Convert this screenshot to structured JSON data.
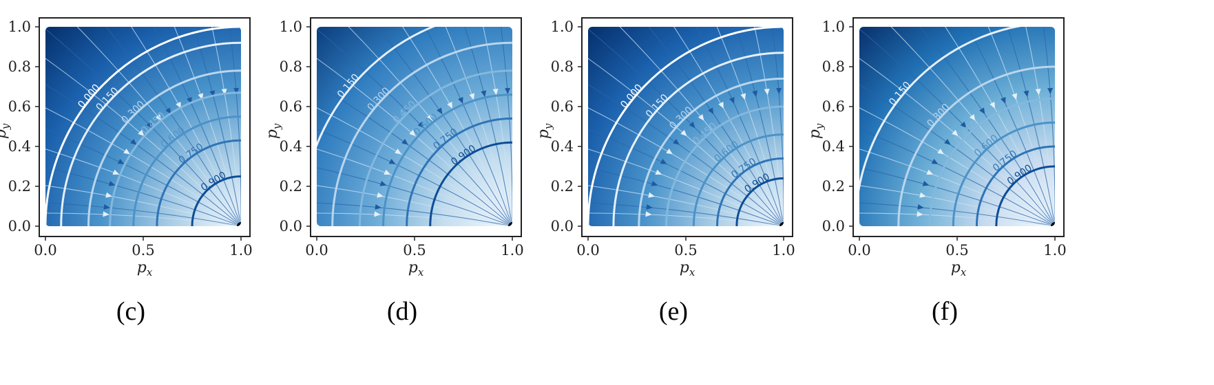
{
  "chart_data": [
    {
      "type": "contour",
      "panel_label": "(c)",
      "xlabel": "p",
      "xlabel_sub": "x",
      "ylabel": "p",
      "ylabel_sub": "y",
      "xlim": [
        0,
        1
      ],
      "ylim": [
        0,
        1
      ],
      "xticks": [
        "0.0",
        "0.5",
        "1.0"
      ],
      "yticks": [
        "0.0",
        "0.2",
        "0.4",
        "0.6",
        "0.8",
        "1.0"
      ],
      "target_point": [
        1.0,
        0.0
      ],
      "contour_levels": [
        "0.000",
        "0.150",
        "0.300",
        "0.450",
        "0.600",
        "0.750",
        "0.900"
      ],
      "contour_radii": [
        1.0,
        0.92,
        0.78,
        0.67,
        0.55,
        0.43,
        0.25
      ],
      "stream_angles": [
        95,
        100,
        105,
        110,
        115,
        120,
        125,
        130,
        135,
        140,
        145,
        150,
        155,
        160,
        165,
        170,
        175,
        178
      ],
      "color_stops": [
        "#052f6b",
        "#1b61ad",
        "#4a94cb",
        "#a9cde6",
        "#f7fbff"
      ]
    },
    {
      "type": "contour",
      "panel_label": "(d)",
      "xlabel": "p",
      "xlabel_sub": "x",
      "ylabel": "p",
      "ylabel_sub": "y",
      "xlim": [
        0,
        1
      ],
      "ylim": [
        0,
        1
      ],
      "xticks": [
        "0.0",
        "0.5",
        "1.0"
      ],
      "yticks": [
        "0.0",
        "0.2",
        "0.4",
        "0.6",
        "0.8",
        "1.0"
      ],
      "target_point": [
        1.0,
        0.0
      ],
      "contour_levels": [
        "0.150",
        "0.300",
        "0.450",
        "0.600",
        "0.750",
        "0.900"
      ],
      "contour_radii": [
        1.08,
        0.92,
        0.78,
        0.66,
        0.54,
        0.42
      ],
      "stream_angles": [
        95,
        100,
        105,
        110,
        115,
        120,
        125,
        130,
        135,
        140,
        145,
        150,
        155,
        160,
        165,
        170,
        175,
        178
      ],
      "color_stops": [
        "#0b3d7c",
        "#2f7cbf",
        "#6aaad7",
        "#c3ddef",
        "#f7fbff"
      ]
    },
    {
      "type": "contour",
      "panel_label": "(e)",
      "xlabel": "p",
      "xlabel_sub": "x",
      "ylabel": "p",
      "ylabel_sub": "y",
      "xlim": [
        0,
        1
      ],
      "ylim": [
        0,
        1
      ],
      "xticks": [
        "0.0",
        "0.5",
        "1.0"
      ],
      "yticks": [
        "0.0",
        "0.2",
        "0.4",
        "0.6",
        "0.8",
        "1.0"
      ],
      "target_point": [
        1.0,
        0.0
      ],
      "contour_levels": [
        "0.000",
        "0.150",
        "0.300",
        "0.450",
        "0.600",
        "0.750",
        "0.900"
      ],
      "contour_radii": [
        1.0,
        0.87,
        0.74,
        0.6,
        0.46,
        0.34,
        0.24
      ],
      "stream_angles": [
        95,
        100,
        105,
        110,
        115,
        120,
        125,
        130,
        135,
        140,
        145,
        150,
        155,
        160,
        165,
        170,
        175,
        178
      ],
      "color_stops": [
        "#052f6b",
        "#1b61ad",
        "#4a94cb",
        "#a9cde6",
        "#f7fbff"
      ]
    },
    {
      "type": "contour",
      "panel_label": "(f)",
      "xlabel": "p",
      "xlabel_sub": "x",
      "ylabel": "p",
      "ylabel_sub": "y",
      "xlim": [
        0,
        1
      ],
      "ylim": [
        0,
        1
      ],
      "xticks": [
        "0.0",
        "0.5",
        "1.0"
      ],
      "yticks": [
        "0.0",
        "0.2",
        "0.4",
        "0.6",
        "0.8",
        "1.0"
      ],
      "target_point": [
        1.0,
        0.0
      ],
      "contour_levels": [
        "0.150",
        "0.300",
        "0.450",
        "0.600",
        "0.750",
        "0.900"
      ],
      "contour_radii": [
        1.02,
        0.8,
        0.64,
        0.52,
        0.4,
        0.3
      ],
      "stream_angles": [
        95,
        100,
        105,
        110,
        115,
        120,
        125,
        130,
        135,
        140,
        145,
        150,
        155,
        160,
        165,
        170,
        175,
        178
      ],
      "color_stops": [
        "#08306b",
        "#2171b5",
        "#6baed6",
        "#c6dbef",
        "#f7fbff"
      ]
    }
  ]
}
